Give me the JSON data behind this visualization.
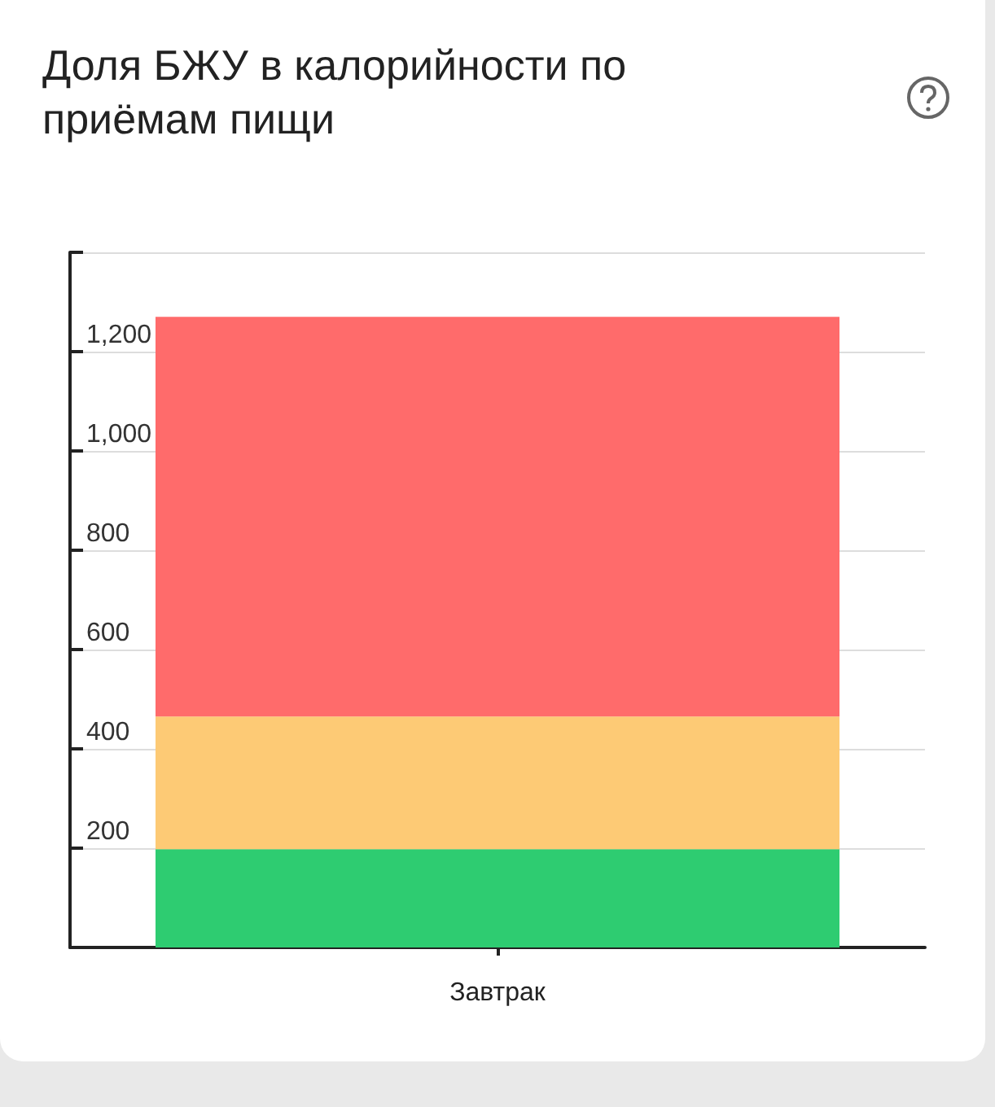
{
  "chart_data": {
    "type": "bar",
    "title": "Доля БЖУ в калорийности по приёмам пищи",
    "categories": [
      "Завтрак"
    ],
    "stacked": true,
    "series": [
      {
        "color": "#2ecc71",
        "values": [
          198
        ]
      },
      {
        "color": "#fdca75",
        "values": [
          267
        ]
      },
      {
        "color": "#ff6b6b",
        "values": [
          805
        ]
      }
    ],
    "ylim": [
      0,
      1400
    ],
    "yticks": [
      200,
      400,
      600,
      800,
      {
        "value": 1000,
        "label": "1,000"
      },
      {
        "value": 1200,
        "label": "1,200"
      },
      {
        "value": 1400,
        "label": null
      }
    ],
    "grid": "y"
  }
}
